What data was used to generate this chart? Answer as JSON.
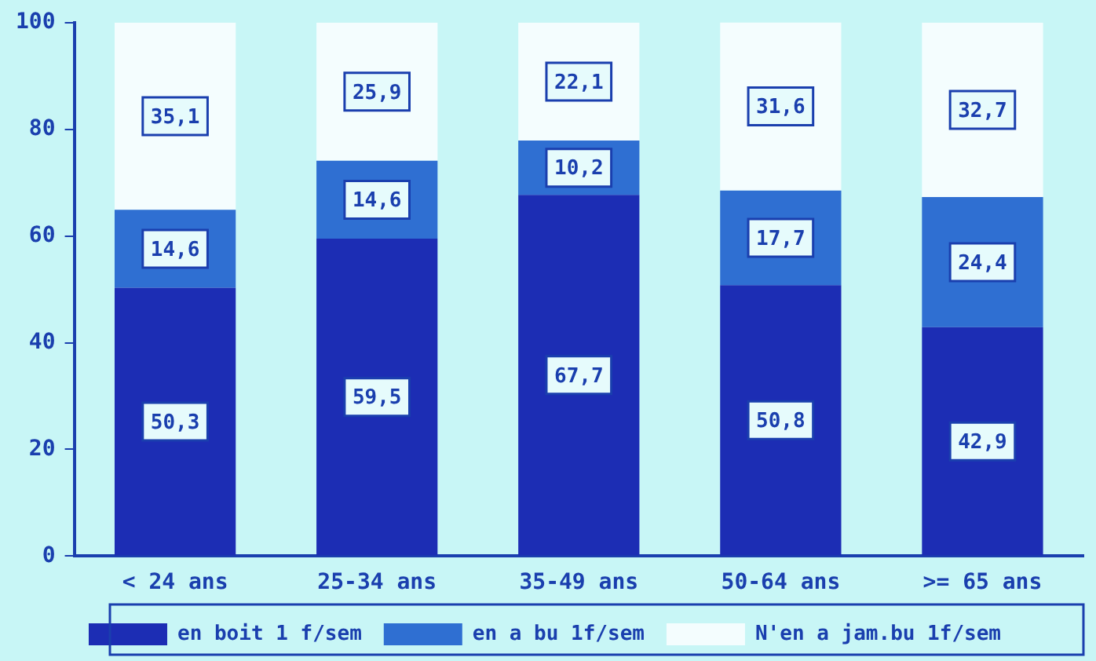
{
  "chart_data": {
    "type": "bar",
    "stacked": true,
    "categories": [
      "< 24 ans",
      "25-34 ans",
      "35-49 ans",
      "50-64 ans",
      ">= 65 ans"
    ],
    "series": [
      {
        "name": "en boit 1 f/sem",
        "color": "#1c2db4",
        "values": [
          50.3,
          59.5,
          67.7,
          50.8,
          42.9
        ],
        "value_labels": [
          "50,3",
          "59,5",
          "67,7",
          "50,8",
          "42,9"
        ]
      },
      {
        "name": "en a bu 1f/sem",
        "color": "#2f6fd2",
        "values": [
          14.6,
          14.6,
          10.2,
          17.7,
          24.4
        ],
        "value_labels": [
          "14,6",
          "14,6",
          "10,2",
          "17,7",
          "24,4"
        ]
      },
      {
        "name": "N'en a jam.bu 1f/sem",
        "color": "#f4fdfe",
        "values": [
          35.1,
          25.9,
          22.1,
          31.6,
          32.7
        ],
        "value_labels": [
          "35,1",
          "25,9",
          "22,1",
          "31,6",
          "32,7"
        ]
      }
    ],
    "ylim": [
      0,
      100
    ],
    "yticks": [
      0,
      20,
      40,
      60,
      80,
      100
    ],
    "grid": false,
    "legend": "bottom"
  }
}
